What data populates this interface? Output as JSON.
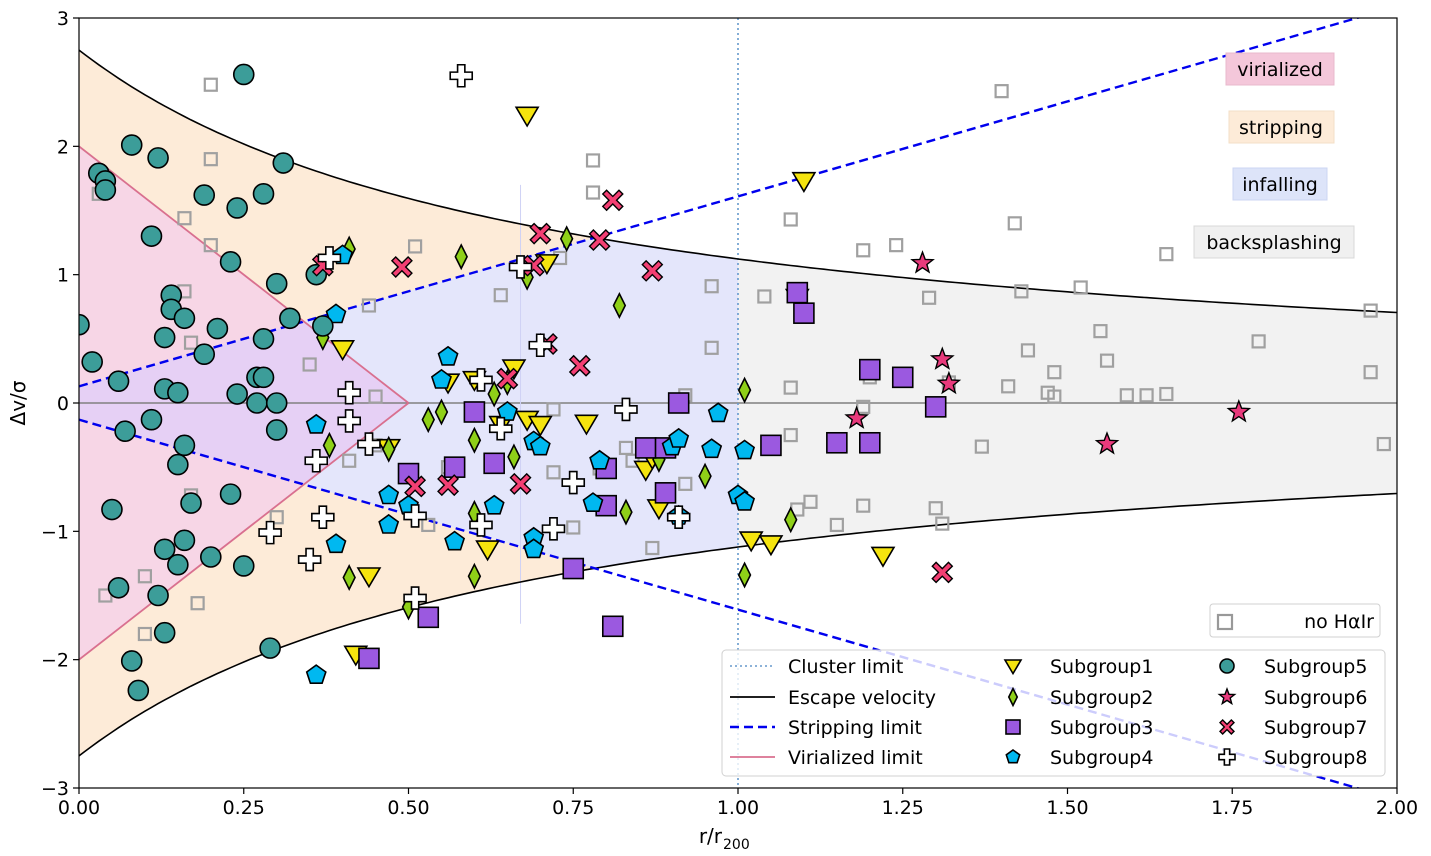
{
  "chart_data": {
    "type": "scatter",
    "xlabel": "r/r",
    "xlabel_sub": "200",
    "ylabel": "Δv/σ",
    "xlim": [
      0,
      2
    ],
    "ylim": [
      -3,
      3
    ],
    "xticks": [
      "0.00",
      "0.25",
      "0.50",
      "0.75",
      "1.00",
      "1.25",
      "1.50",
      "1.75",
      "2.00"
    ],
    "yticks": [
      "−3",
      "−2",
      "−1",
      "0",
      "1",
      "2",
      "3"
    ],
    "regions": [
      {
        "name": "virialized",
        "label": "virialized",
        "color": "#f4c2d7"
      },
      {
        "name": "stripping",
        "label": "stripping",
        "color": "#fde9d2"
      },
      {
        "name": "infalling",
        "label": "infalling",
        "color": "#dde4f9"
      },
      {
        "name": "backsplashing",
        "label": "backsplashing",
        "color": "#ececec"
      }
    ],
    "legend": [
      {
        "key": "cluster-limit",
        "label": "Cluster limit"
      },
      {
        "key": "escape",
        "label": "Escape velocity"
      },
      {
        "key": "stripping",
        "label": "Stripping limit"
      },
      {
        "key": "virialized",
        "label": "Virialized limit"
      },
      {
        "key": "sub1",
        "label": "Subgroup1"
      },
      {
        "key": "sub2",
        "label": "Subgroup2"
      },
      {
        "key": "sub3",
        "label": "Subgroup3"
      },
      {
        "key": "sub4",
        "label": "Subgroup4"
      },
      {
        "key": "sub5",
        "label": "Subgroup5"
      },
      {
        "key": "sub6",
        "label": "Subgroup6"
      },
      {
        "key": "sub7",
        "label": "Subgroup7"
      },
      {
        "key": "sub8",
        "label": "Subgroup8"
      }
    ],
    "noHa_label": "no HαIr",
    "series": [
      {
        "name": "no HαIr",
        "marker": "square-open",
        "color": "#999999",
        "points": [
          [
            0.2,
            2.48
          ],
          [
            0.2,
            1.9
          ],
          [
            0.03,
            1.63
          ],
          [
            0.16,
            1.44
          ],
          [
            0.2,
            1.23
          ],
          [
            0.16,
            0.87
          ],
          [
            0.17,
            0.47
          ],
          [
            0.17,
            -0.72
          ],
          [
            0.04,
            -1.5
          ],
          [
            0.1,
            -1.35
          ],
          [
            0.1,
            -1.8
          ],
          [
            0.18,
            -1.56
          ],
          [
            0.3,
            -0.89
          ],
          [
            0.41,
            -0.45
          ],
          [
            0.45,
            -0.33
          ],
          [
            0.56,
            -0.5
          ],
          [
            0.53,
            -0.95
          ],
          [
            0.45,
            0.05
          ],
          [
            0.35,
            0.3
          ],
          [
            0.44,
            0.76
          ],
          [
            0.51,
            1.22
          ],
          [
            0.64,
            0.84
          ],
          [
            0.73,
            1.13
          ],
          [
            0.78,
            1.64
          ],
          [
            0.78,
            1.89
          ],
          [
            0.96,
            0.91
          ],
          [
            0.96,
            0.43
          ],
          [
            0.92,
            0.06
          ],
          [
            0.83,
            -0.35
          ],
          [
            0.84,
            -0.45
          ],
          [
            0.87,
            -1.13
          ],
          [
            0.92,
            -0.63
          ],
          [
            0.72,
            -0.54
          ],
          [
            0.75,
            -0.97
          ],
          [
            0.79,
            -0.51
          ],
          [
            0.72,
            -0.05
          ],
          [
            1.04,
            0.83
          ],
          [
            1.08,
            1.43
          ],
          [
            1.08,
            0.12
          ],
          [
            1.08,
            -0.25
          ],
          [
            1.09,
            -0.83
          ],
          [
            1.11,
            -0.77
          ],
          [
            1.15,
            -0.95
          ],
          [
            1.19,
            1.19
          ],
          [
            1.24,
            1.23
          ],
          [
            1.29,
            0.82
          ],
          [
            1.2,
            0.2
          ],
          [
            1.19,
            -0.03
          ],
          [
            1.19,
            -0.8
          ],
          [
            1.3,
            -0.82
          ],
          [
            1.31,
            -0.94
          ],
          [
            1.32,
            0.16
          ],
          [
            1.37,
            -0.34
          ],
          [
            1.4,
            2.43
          ],
          [
            1.42,
            1.4
          ],
          [
            1.43,
            0.87
          ],
          [
            1.44,
            0.41
          ],
          [
            1.41,
            0.13
          ],
          [
            1.47,
            0.08
          ],
          [
            1.48,
            0.05
          ],
          [
            1.48,
            0.24
          ],
          [
            1.52,
            0.9
          ],
          [
            1.55,
            0.56
          ],
          [
            1.56,
            0.33
          ],
          [
            1.59,
            0.06
          ],
          [
            1.62,
            0.06
          ],
          [
            1.65,
            0.07
          ],
          [
            1.65,
            1.16
          ],
          [
            1.79,
            0.48
          ],
          [
            1.96,
            0.72
          ],
          [
            1.96,
            0.24
          ],
          [
            1.98,
            -0.32
          ]
        ]
      },
      {
        "name": "Subgroup1",
        "marker": "triangle-down",
        "color": "#f5e40e",
        "points": [
          [
            0.68,
            2.24
          ],
          [
            1.1,
            1.73
          ],
          [
            1.09,
            0.82
          ],
          [
            0.4,
            0.42
          ],
          [
            0.56,
            0.16
          ],
          [
            0.6,
            0.18
          ],
          [
            0.66,
            0.27
          ],
          [
            0.71,
            1.09
          ],
          [
            0.47,
            -0.35
          ],
          [
            0.64,
            -0.17
          ],
          [
            0.68,
            -0.13
          ],
          [
            0.7,
            -0.17
          ],
          [
            0.77,
            -0.16
          ],
          [
            0.86,
            -0.52
          ],
          [
            0.87,
            -0.43
          ],
          [
            0.88,
            -0.82
          ],
          [
            1.02,
            -1.07
          ],
          [
            1.05,
            -1.1
          ],
          [
            1.22,
            -1.19
          ],
          [
            0.62,
            -1.14
          ],
          [
            0.44,
            -1.35
          ],
          [
            0.42,
            -1.96
          ]
        ]
      },
      {
        "name": "Subgroup2",
        "marker": "diamond",
        "color": "#8fd018",
        "points": [
          [
            0.41,
            1.2
          ],
          [
            0.58,
            1.14
          ],
          [
            0.68,
            0.98
          ],
          [
            0.74,
            1.28
          ],
          [
            0.82,
            0.76
          ],
          [
            0.37,
            0.51
          ],
          [
            0.38,
            -0.33
          ],
          [
            0.47,
            -0.36
          ],
          [
            0.53,
            -0.13
          ],
          [
            0.55,
            -0.07
          ],
          [
            0.6,
            -0.29
          ],
          [
            0.63,
            0.07
          ],
          [
            0.65,
            0.16
          ],
          [
            0.66,
            -0.42
          ],
          [
            0.6,
            -0.86
          ],
          [
            0.6,
            -1.35
          ],
          [
            0.83,
            -0.85
          ],
          [
            0.88,
            -0.44
          ],
          [
            0.95,
            -0.57
          ],
          [
            1.01,
            0.1
          ],
          [
            1.01,
            -1.34
          ],
          [
            1.08,
            -0.91
          ],
          [
            0.41,
            -1.36
          ],
          [
            0.5,
            -1.59
          ]
        ]
      },
      {
        "name": "Subgroup3",
        "marker": "square",
        "color": "#9b59e0",
        "points": [
          [
            1.09,
            0.86
          ],
          [
            1.1,
            0.7
          ],
          [
            1.2,
            0.26
          ],
          [
            1.25,
            0.2
          ],
          [
            1.3,
            -0.03
          ],
          [
            1.15,
            -0.31
          ],
          [
            1.2,
            -0.31
          ],
          [
            1.05,
            -0.33
          ],
          [
            0.91,
            0.0
          ],
          [
            0.86,
            -0.35
          ],
          [
            0.89,
            -0.35
          ],
          [
            0.89,
            -0.7
          ],
          [
            0.8,
            -0.51
          ],
          [
            0.8,
            -0.8
          ],
          [
            0.6,
            -0.07
          ],
          [
            0.63,
            -0.47
          ],
          [
            0.57,
            -0.5
          ],
          [
            0.5,
            -0.55
          ],
          [
            0.75,
            -1.29
          ],
          [
            0.81,
            -1.74
          ],
          [
            0.53,
            -1.67
          ],
          [
            0.44,
            -1.99
          ]
        ]
      },
      {
        "name": "Subgroup4",
        "marker": "pentagon",
        "color": "#00b8f0",
        "points": [
          [
            0.4,
            1.15
          ],
          [
            0.39,
            0.69
          ],
          [
            0.56,
            0.36
          ],
          [
            0.55,
            0.18
          ],
          [
            0.65,
            -0.07
          ],
          [
            0.69,
            -0.3
          ],
          [
            0.7,
            -0.34
          ],
          [
            0.36,
            -0.17
          ],
          [
            0.47,
            -0.72
          ],
          [
            0.47,
            -0.95
          ],
          [
            0.5,
            -0.8
          ],
          [
            0.39,
            -1.1
          ],
          [
            0.57,
            -1.08
          ],
          [
            0.63,
            -0.8
          ],
          [
            0.69,
            -1.05
          ],
          [
            0.69,
            -1.14
          ],
          [
            0.78,
            -0.78
          ],
          [
            0.79,
            -0.45
          ],
          [
            0.9,
            -0.34
          ],
          [
            0.91,
            -0.28
          ],
          [
            0.91,
            -0.88
          ],
          [
            0.96,
            -0.36
          ],
          [
            0.97,
            -0.08
          ],
          [
            1.0,
            -0.72
          ],
          [
            1.01,
            -0.37
          ],
          [
            1.01,
            -0.77
          ],
          [
            0.36,
            -2.12
          ]
        ]
      },
      {
        "name": "Subgroup5",
        "marker": "circle",
        "color": "#3c9d99",
        "points": [
          [
            0.25,
            2.56
          ],
          [
            0.08,
            2.01
          ],
          [
            0.12,
            1.91
          ],
          [
            0.31,
            1.87
          ],
          [
            0.03,
            1.79
          ],
          [
            0.04,
            1.73
          ],
          [
            0.04,
            1.66
          ],
          [
            0.19,
            1.62
          ],
          [
            0.24,
            1.52
          ],
          [
            0.28,
            1.63
          ],
          [
            0.11,
            1.3
          ],
          [
            0.23,
            1.1
          ],
          [
            0.36,
            1.0
          ],
          [
            0.3,
            0.93
          ],
          [
            0.14,
            0.84
          ],
          [
            0.14,
            0.73
          ],
          [
            0.16,
            0.66
          ],
          [
            0.32,
            0.66
          ],
          [
            0.37,
            0.6
          ],
          [
            0.0,
            0.61
          ],
          [
            0.21,
            0.58
          ],
          [
            0.13,
            0.51
          ],
          [
            0.28,
            0.5
          ],
          [
            0.19,
            0.38
          ],
          [
            0.02,
            0.32
          ],
          [
            0.06,
            0.17
          ],
          [
            0.27,
            0.2
          ],
          [
            0.28,
            0.2
          ],
          [
            0.13,
            0.11
          ],
          [
            0.15,
            0.08
          ],
          [
            0.24,
            0.07
          ],
          [
            0.27,
            0.0
          ],
          [
            0.3,
            0.0
          ],
          [
            0.11,
            -0.13
          ],
          [
            0.07,
            -0.22
          ],
          [
            0.3,
            -0.21
          ],
          [
            0.16,
            -0.33
          ],
          [
            0.15,
            -0.48
          ],
          [
            0.17,
            -0.78
          ],
          [
            0.23,
            -0.71
          ],
          [
            0.05,
            -0.83
          ],
          [
            0.16,
            -1.07
          ],
          [
            0.13,
            -1.14
          ],
          [
            0.15,
            -1.26
          ],
          [
            0.2,
            -1.2
          ],
          [
            0.25,
            -1.27
          ],
          [
            0.06,
            -1.44
          ],
          [
            0.12,
            -1.5
          ],
          [
            0.13,
            -1.79
          ],
          [
            0.29,
            -1.91
          ],
          [
            0.08,
            -2.01
          ],
          [
            0.09,
            -2.24
          ]
        ]
      },
      {
        "name": "Subgroup6",
        "marker": "star",
        "color": "#e83a7c",
        "points": [
          [
            1.28,
            1.09
          ],
          [
            1.31,
            0.34
          ],
          [
            1.32,
            0.15
          ],
          [
            1.18,
            -0.12
          ],
          [
            1.56,
            -0.32
          ],
          [
            1.76,
            -0.07
          ]
        ]
      },
      {
        "name": "Subgroup7",
        "marker": "x",
        "color": "#f33f73",
        "points": [
          [
            0.81,
            1.58
          ],
          [
            0.7,
            1.32
          ],
          [
            0.79,
            1.27
          ],
          [
            0.69,
            1.07
          ],
          [
            0.37,
            1.07
          ],
          [
            0.49,
            1.06
          ],
          [
            0.87,
            1.03
          ],
          [
            0.71,
            0.46
          ],
          [
            0.76,
            0.29
          ],
          [
            0.65,
            0.19
          ],
          [
            0.51,
            -0.65
          ],
          [
            0.56,
            -0.64
          ],
          [
            0.67,
            -0.63
          ],
          [
            1.31,
            -1.32
          ]
        ]
      },
      {
        "name": "Subgroup8",
        "marker": "plus",
        "color": "#ffffff",
        "points": [
          [
            0.58,
            2.55
          ],
          [
            0.38,
            1.13
          ],
          [
            0.67,
            1.06
          ],
          [
            0.7,
            0.45
          ],
          [
            0.61,
            0.18
          ],
          [
            0.41,
            0.08
          ],
          [
            0.41,
            -0.14
          ],
          [
            0.44,
            -0.32
          ],
          [
            0.36,
            -0.45
          ],
          [
            0.83,
            -0.05
          ],
          [
            0.64,
            -0.2
          ],
          [
            0.75,
            -0.62
          ],
          [
            0.61,
            -0.95
          ],
          [
            0.72,
            -0.98
          ],
          [
            0.91,
            -0.89
          ],
          [
            0.51,
            -0.88
          ],
          [
            0.37,
            -0.89
          ],
          [
            0.29,
            -1.01
          ],
          [
            0.35,
            -1.22
          ],
          [
            0.51,
            -1.52
          ]
        ]
      }
    ]
  }
}
